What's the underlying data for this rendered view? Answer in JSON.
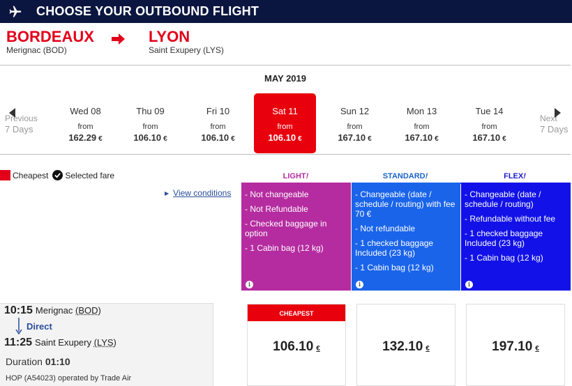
{
  "header": {
    "title": "CHOOSE YOUR OUTBOUND FLIGHT",
    "icon": "airplane-icon"
  },
  "route": {
    "from_city": "BORDEAUX",
    "from_airport": "Merignac (BOD)",
    "to_city": "LYON",
    "to_airport": "Saint Exupery (LYS)",
    "accent_color": "#e2001a"
  },
  "calendar": {
    "month": "MAY 2019",
    "prev_label_1": "Previous",
    "prev_label_2": "7 Days",
    "next_label_1": "Next",
    "next_label_2": "7 Days",
    "days": [
      {
        "name": "Wed 08",
        "from": "from",
        "price": "162.29",
        "currency": "€"
      },
      {
        "name": "Thu 09",
        "from": "from",
        "price": "106.10",
        "currency": "€"
      },
      {
        "name": "Fri 10",
        "from": "from",
        "price": "106.10",
        "currency": "€"
      },
      {
        "name": "Sat 11",
        "from": "from",
        "price": "106.10",
        "currency": "€",
        "selected": true
      },
      {
        "name": "Sun 12",
        "from": "from",
        "price": "167.10",
        "currency": "€"
      },
      {
        "name": "Mon 13",
        "from": "from",
        "price": "167.10",
        "currency": "€"
      },
      {
        "name": "Tue 14",
        "from": "from",
        "price": "167.10",
        "currency": "€"
      }
    ]
  },
  "legend": {
    "cheapest": "Cheapest",
    "selected": "Selected fare"
  },
  "view_conditions": "View conditions",
  "fares": {
    "light": {
      "name": "LIGHT",
      "mark": "!",
      "color": "#b52ca0",
      "items": [
        "- Not changeable",
        "- Not Refundable",
        "- Checked baggage in option",
        "- 1 Cabin bag  (12 kg)"
      ]
    },
    "standard": {
      "name": "STANDARD",
      "mark": "!",
      "color": "#1a64ea",
      "items": [
        "- Changeable (date / schedule / routing) with fee 70 €",
        "- Not refundable",
        "- 1 checked baggage Included (23 kg)",
        "- 1 Cabin bag  (12 kg)"
      ]
    },
    "flex": {
      "name": "FLEX",
      "mark": "!",
      "color": "#1212e8",
      "items": [
        "- Changeable (date / schedule / routing)",
        "- Refundable without fee",
        "- 1 checked baggage Included (23 kg)",
        "- 1 Cabin bag  (12 kg)"
      ]
    }
  },
  "flight": {
    "dep_time": "10:15",
    "dep_place": "Merignac",
    "dep_code": "(BOD)",
    "direct": "Direct",
    "arr_time": "11:25",
    "arr_place": "Saint Exupery",
    "arr_code": "(LYS)",
    "duration_label": "Duration",
    "duration": "01:10",
    "operated": "HOP (A54023) operated by Trade Air"
  },
  "prices": {
    "light": {
      "badge": "CHEAPEST",
      "amount": "106.10",
      "currency": "€"
    },
    "standard": {
      "amount": "132.10",
      "currency": "€"
    },
    "flex": {
      "amount": "197.10",
      "currency": "€"
    }
  }
}
